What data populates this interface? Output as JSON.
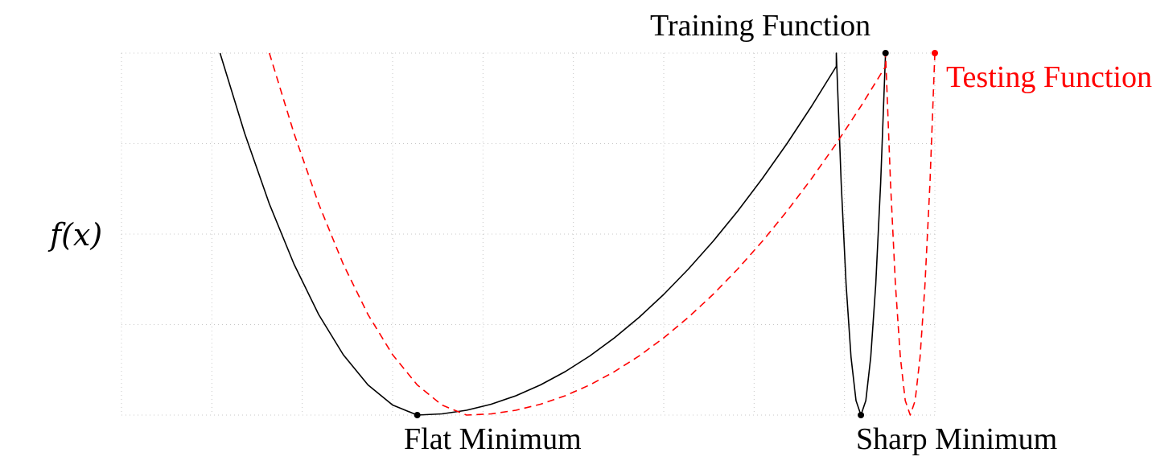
{
  "labels": {
    "y_axis": "f(x)",
    "training": "Training Function",
    "testing": "Testing Function",
    "flat_min": "Flat Minimum",
    "sharp_min": "Sharp Minimum"
  },
  "colors": {
    "training": "#000000",
    "testing": "#ff0000",
    "grid": "#c8c8c8"
  },
  "chart_data": {
    "type": "line",
    "grid": true,
    "series": [
      {
        "name": "Training Function",
        "style": "solid",
        "points": [
          [
            -5,
            1.0
          ],
          [
            -4.5,
            0.7778
          ],
          [
            -4,
            0.5833
          ],
          [
            -3.5,
            0.4167
          ],
          [
            -3,
            0.2778
          ],
          [
            -2.5,
            0.1667
          ],
          [
            -2,
            0.0833
          ],
          [
            -1.5,
            0.0278
          ],
          [
            -1,
            0.0
          ],
          [
            -0.5,
            0.0033
          ],
          [
            0,
            0.0133
          ],
          [
            0.5,
            0.03
          ],
          [
            1,
            0.0533
          ],
          [
            1.5,
            0.0833
          ],
          [
            2,
            0.12
          ],
          [
            2.5,
            0.1633
          ],
          [
            3,
            0.2133
          ],
          [
            3.5,
            0.27
          ],
          [
            4,
            0.3333
          ],
          [
            4.5,
            0.4033
          ],
          [
            5,
            0.48
          ],
          [
            5.5,
            0.5633
          ],
          [
            6,
            0.6533
          ],
          [
            6.5,
            0.75
          ],
          [
            7,
            0.8533
          ],
          [
            7.5,
            0.9633
          ],
          [
            7.5,
            1.0
          ],
          [
            7.6,
            0.64
          ],
          [
            7.7,
            0.36
          ],
          [
            7.8,
            0.16
          ],
          [
            7.9,
            0.04
          ],
          [
            8,
            0.0
          ],
          [
            8.1,
            0.04
          ],
          [
            8.2,
            0.16
          ],
          [
            8.3,
            0.36
          ],
          [
            8.4,
            0.64
          ],
          [
            8.5,
            1.0
          ]
        ],
        "markers": [
          [
            -1,
            0
          ],
          [
            8,
            0
          ],
          [
            8.5,
            1
          ]
        ]
      },
      {
        "name": "Testing Function",
        "style": "dashed",
        "points": [
          [
            -4,
            1.0
          ],
          [
            -3.5,
            0.7778
          ],
          [
            -3,
            0.5833
          ],
          [
            -2.5,
            0.4167
          ],
          [
            -2,
            0.2778
          ],
          [
            -1.5,
            0.1667
          ],
          [
            -1,
            0.0833
          ],
          [
            -0.5,
            0.0278
          ],
          [
            0,
            0.0
          ],
          [
            0.5,
            0.0033
          ],
          [
            1,
            0.0133
          ],
          [
            1.5,
            0.03
          ],
          [
            2,
            0.0533
          ],
          [
            2.5,
            0.0833
          ],
          [
            3,
            0.12
          ],
          [
            3.5,
            0.1633
          ],
          [
            4,
            0.2133
          ],
          [
            4.5,
            0.27
          ],
          [
            5,
            0.3333
          ],
          [
            5.5,
            0.4033
          ],
          [
            6,
            0.48
          ],
          [
            6.5,
            0.5633
          ],
          [
            7,
            0.6533
          ],
          [
            7.5,
            0.75
          ],
          [
            8,
            0.8533
          ],
          [
            8.5,
            0.9633
          ],
          [
            8.5,
            1.0
          ],
          [
            8.6,
            0.64
          ],
          [
            8.7,
            0.36
          ],
          [
            8.8,
            0.16
          ],
          [
            8.9,
            0.04
          ],
          [
            9,
            0.0
          ],
          [
            9.1,
            0.04
          ],
          [
            9.2,
            0.16
          ],
          [
            9.3,
            0.36
          ],
          [
            9.4,
            0.64
          ],
          [
            9.5,
            1.0
          ]
        ],
        "markers": [
          [
            9.5,
            1
          ]
        ]
      }
    ],
    "xlim": [
      -7,
      9.5
    ],
    "ylim": [
      0,
      1
    ]
  }
}
